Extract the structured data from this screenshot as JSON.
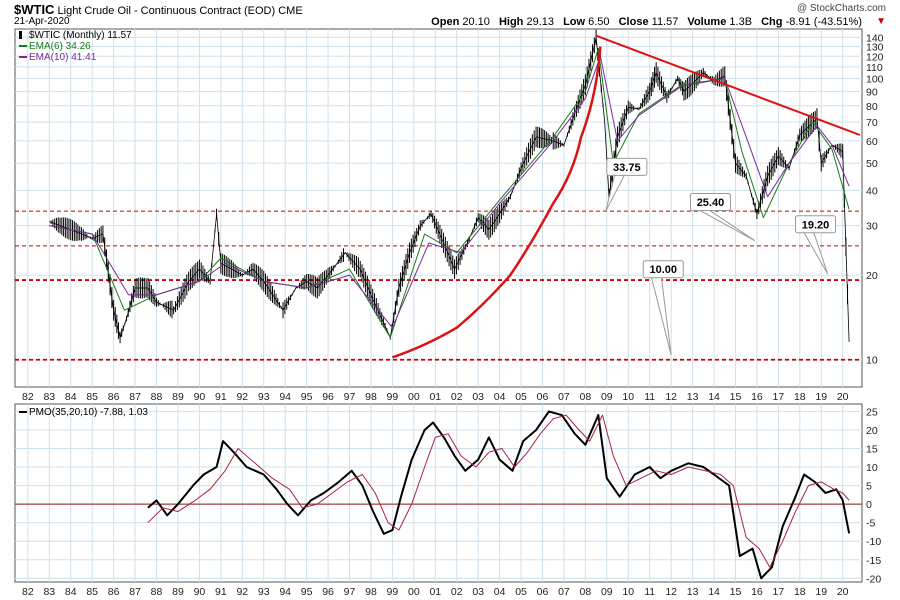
{
  "header": {
    "symbol": "$WTIC",
    "name": "Light Crude Oil - Continuous Contract (EOD)",
    "exchange": "CME",
    "date": "21-Apr-2020",
    "copyright": "@ StockCharts.com",
    "ohlc": {
      "open_label": "Open",
      "open": "20.10",
      "high_label": "High",
      "high": "29.13",
      "low_label": "Low",
      "low": "6.50",
      "close_label": "Close",
      "close": "11.57",
      "volume_label": "Volume",
      "volume": "1.3B",
      "chg_label": "Chg",
      "chg": "-8.91 (-43.51%)"
    }
  },
  "colors": {
    "price": "#000000",
    "ema6": "#1a7a1a",
    "ema10": "#7a2a9a",
    "trend": "#dd1111",
    "support": "#cc0000",
    "grid": "#cfe0ec",
    "pmo": "#000000",
    "pmo_signal": "#aa2244"
  },
  "chart_data": [
    {
      "type": "line",
      "panel": "price",
      "legend": [
        {
          "label": "$WTIC (Monthly) 11.57",
          "color": "#000000"
        },
        {
          "label": "EMA(6) 34.26",
          "color": "#1a7a1a"
        },
        {
          "label": "EMA(10) 41.41",
          "color": "#7a2a9a"
        }
      ],
      "x_ticks": [
        "82",
        "83",
        "84",
        "85",
        "86",
        "87",
        "88",
        "89",
        "90",
        "91",
        "92",
        "93",
        "94",
        "95",
        "96",
        "97",
        "98",
        "99",
        "00",
        "01",
        "02",
        "03",
        "04",
        "05",
        "06",
        "07",
        "08",
        "09",
        "10",
        "11",
        "12",
        "13",
        "14",
        "15",
        "16",
        "17",
        "18",
        "19",
        "20"
      ],
      "y_ticks": [
        10,
        20,
        30,
        40,
        50,
        60,
        70,
        80,
        90,
        100,
        110,
        120,
        130,
        140
      ],
      "y_scale": "log",
      "ylim": [
        8,
        150
      ],
      "grid": true,
      "series": [
        {
          "name": "$WTIC (Monthly)",
          "x": [
            1983.0,
            1983.5,
            1984.0,
            1984.5,
            1985.0,
            1985.5,
            1986.0,
            1986.3,
            1986.6,
            1987.0,
            1987.6,
            1988.0,
            1988.8,
            1989.5,
            1990.0,
            1990.5,
            1990.8,
            1991.0,
            1991.5,
            1992.0,
            1992.5,
            1993.0,
            1993.9,
            1994.5,
            1995.0,
            1995.5,
            1996.0,
            1996.8,
            1997.5,
            1998.0,
            1998.5,
            1998.9,
            1999.3,
            1999.8,
            2000.3,
            2000.8,
            2001.3,
            2001.9,
            2002.5,
            2003.0,
            2003.5,
            2004.0,
            2004.5,
            2005.0,
            2005.7,
            2006.5,
            2007.0,
            2007.5,
            2008.0,
            2008.5,
            2008.9,
            2009.1,
            2009.5,
            2010.0,
            2010.5,
            2011.0,
            2011.3,
            2011.8,
            2012.3,
            2012.6,
            2013.0,
            2013.5,
            2014.0,
            2014.5,
            2015.0,
            2015.5,
            2016.0,
            2016.5,
            2017.0,
            2017.5,
            2018.0,
            2018.8,
            2019.0,
            2019.5,
            2020.0,
            2020.3
          ],
          "y": [
            31,
            30,
            29,
            28,
            27,
            28,
            15,
            12,
            14,
            18,
            18,
            16,
            15,
            19,
            21,
            19,
            33,
            22,
            21,
            20,
            21,
            19,
            15,
            18,
            19,
            18,
            20,
            24,
            21,
            17,
            14,
            12,
            18,
            24,
            30,
            33,
            27,
            21,
            26,
            32,
            29,
            33,
            38,
            48,
            62,
            60,
            58,
            75,
            95,
            140,
            70,
            38,
            62,
            79,
            78,
            90,
            105,
            86,
            100,
            90,
            96,
            105,
            98,
            102,
            50,
            45,
            33,
            45,
            53,
            48,
            63,
            72,
            50,
            58,
            55,
            11.57
          ]
        },
        {
          "name": "EMA(6)",
          "x": [
            1983.0,
            1985.0,
            1986.5,
            1988.0,
            1990.0,
            1991.0,
            1993.0,
            1995.0,
            1997.0,
            1998.9,
            2000.5,
            2002.0,
            2004.0,
            2006.5,
            2008.0,
            2008.6,
            2009.3,
            2010.5,
            2012.5,
            2014.5,
            2015.3,
            2016.3,
            2017.5,
            2018.6,
            2019.5,
            2020.3
          ],
          "y": [
            30,
            28,
            15,
            17,
            19,
            23,
            19,
            18,
            21,
            12,
            28,
            24,
            37,
            62,
            90,
            128,
            50,
            75,
            95,
            100,
            55,
            32,
            50,
            70,
            56,
            34.26
          ]
        },
        {
          "name": "EMA(10)",
          "x": [
            1983.0,
            1985.0,
            1986.7,
            1988.0,
            1990.0,
            1991.2,
            1993.0,
            1995.0,
            1997.0,
            1999.0,
            2000.7,
            2002.2,
            2004.0,
            2006.5,
            2008.0,
            2008.7,
            2009.5,
            2010.5,
            2012.5,
            2014.5,
            2015.5,
            2016.5,
            2017.5,
            2018.8,
            2019.5,
            2020.3
          ],
          "y": [
            30,
            28,
            17,
            17,
            19,
            22,
            19,
            18,
            20,
            13,
            26,
            24,
            36,
            60,
            85,
            120,
            60,
            74,
            94,
            100,
            62,
            38,
            50,
            68,
            58,
            41.41
          ]
        }
      ],
      "annotations": [
        "33.75",
        "25.40",
        "19.20",
        "10.00"
      ],
      "levels": [
        33.75,
        25.4,
        19.2,
        10.0
      ]
    },
    {
      "type": "line",
      "panel": "indicator",
      "legend": [
        {
          "label": "PMO(35,20,10) -7.88, 1.03",
          "color": "#000000"
        }
      ],
      "x_ticks": [
        "82",
        "83",
        "84",
        "85",
        "86",
        "87",
        "88",
        "89",
        "90",
        "91",
        "92",
        "93",
        "94",
        "95",
        "96",
        "97",
        "98",
        "99",
        "00",
        "01",
        "02",
        "03",
        "04",
        "05",
        "06",
        "07",
        "08",
        "09",
        "10",
        "11",
        "12",
        "13",
        "14",
        "15",
        "16",
        "17",
        "18",
        "19",
        "20"
      ],
      "y_ticks": [
        -20,
        -15,
        -10,
        -5,
        0,
        5,
        10,
        15,
        20,
        25
      ],
      "ylim": [
        -21,
        27
      ],
      "grid": true,
      "series": [
        {
          "name": "PMO",
          "x": [
            1987.6,
            1988.0,
            1988.5,
            1989.0,
            1989.7,
            1990.2,
            1990.8,
            1991.1,
            1991.6,
            1992.2,
            1993.0,
            1993.6,
            1994.1,
            1994.6,
            1995.2,
            1995.8,
            1996.5,
            1997.1,
            1997.6,
            1998.1,
            1998.6,
            1999.0,
            1999.4,
            1999.9,
            2000.5,
            2000.9,
            2001.4,
            2001.9,
            2002.4,
            2003.0,
            2003.5,
            2004.0,
            2004.6,
            2005.1,
            2005.7,
            2006.3,
            2006.9,
            2007.5,
            2008.0,
            2008.6,
            2009.0,
            2009.6,
            2010.3,
            2011.0,
            2011.5,
            2012.0,
            2012.8,
            2013.5,
            2014.0,
            2014.7,
            2015.2,
            2015.8,
            2016.2,
            2016.7,
            2017.2,
            2017.8,
            2018.2,
            2018.7,
            2019.2,
            2019.7,
            2020.0,
            2020.3
          ],
          "y": [
            -1,
            1,
            -3,
            0,
            5,
            8,
            10,
            17,
            14,
            10,
            8,
            4,
            0,
            -3,
            1,
            3,
            6,
            9,
            5,
            -2,
            -8,
            -7,
            2,
            12,
            20,
            22,
            18,
            13,
            9,
            12,
            18,
            12,
            9,
            17,
            20,
            25,
            24,
            19,
            16,
            24,
            7,
            2,
            8,
            10,
            7,
            9,
            11,
            10,
            8,
            5,
            -14,
            -12,
            -20,
            -17,
            -6,
            2,
            8,
            6,
            3,
            4,
            1.03,
            -7.88
          ]
        },
        {
          "name": "Signal",
          "x": [
            1987.6,
            1988.3,
            1989.0,
            1989.8,
            1990.5,
            1991.2,
            1991.8,
            1992.6,
            1993.4,
            1994.2,
            1994.8,
            1995.5,
            1996.2,
            1996.9,
            1997.6,
            1998.2,
            1998.8,
            1999.3,
            1999.9,
            2000.5,
            2001.0,
            2001.6,
            2002.2,
            2002.9,
            2003.5,
            2004.1,
            2004.7,
            2005.3,
            2005.9,
            2006.5,
            2007.1,
            2007.7,
            2008.2,
            2008.8,
            2009.3,
            2009.9,
            2010.6,
            2011.3,
            2012.0,
            2012.8,
            2013.6,
            2014.3,
            2014.9,
            2015.5,
            2016.1,
            2016.6,
            2017.2,
            2017.8,
            2018.4,
            2019.0,
            2019.6,
            2020.0,
            2020.3
          ],
          "y": [
            -5,
            -1,
            -2,
            1,
            4,
            9,
            15,
            11,
            7,
            4,
            -1,
            0,
            3,
            6,
            8,
            3,
            -5,
            -7,
            0,
            10,
            18,
            19,
            13,
            10,
            14,
            15,
            10,
            14,
            19,
            23,
            24,
            20,
            17,
            24,
            13,
            5,
            7,
            9,
            8,
            10,
            9,
            8,
            5,
            -9,
            -12,
            -17,
            -10,
            -2,
            5,
            6,
            4,
            3,
            1.03
          ]
        }
      ],
      "levels": [
        0
      ]
    }
  ],
  "trendlines": [
    {
      "label": "descending resistance",
      "x": [
        2008.5,
        2020.8
      ],
      "y": [
        142,
        63
      ]
    },
    {
      "label": "parabolic support",
      "x": [
        1999.0,
        2002.0,
        2004.5,
        2006.5,
        2007.8,
        2008.7
      ],
      "y": [
        10.2,
        13,
        20,
        36,
        62,
        130
      ]
    }
  ],
  "callouts": [
    {
      "text": "33.75",
      "pointer_x": 2008.95,
      "pointer_y": 33.75,
      "box_x": 2009.0,
      "box_y": 52
    },
    {
      "text": "25.40",
      "pointer_x": 2015.9,
      "pointer_y": 26.5,
      "box_x": 2012.9,
      "box_y": 39
    },
    {
      "text": "19.20",
      "pointer_x": 2019.3,
      "pointer_y": 20.2,
      "box_x": 2017.8,
      "box_y": 32.5
    },
    {
      "text": "10.00",
      "pointer_x": 2012.0,
      "pointer_y": 10.4,
      "box_x": 2010.7,
      "box_y": 22.5
    }
  ]
}
